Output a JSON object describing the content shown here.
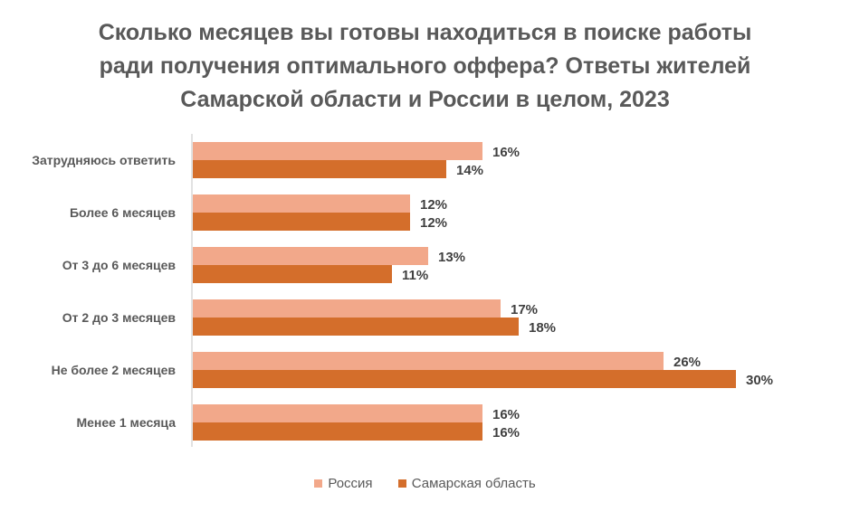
{
  "chart_data": {
    "type": "bar",
    "orientation": "horizontal",
    "title_lines": [
      "Сколько месяцев вы готовы находиться в поиске работы",
      "ради получения оптимального оффера? Ответы жителей",
      "Самарской области и России в целом, 2023"
    ],
    "categories": [
      "Затрудняюсь ответить",
      "Более 6 месяцев",
      "От 3 до 6 месяцев",
      "От 2 до 3 месяцев",
      "Не более 2 месяцев",
      "Менее 1 месяца"
    ],
    "series": [
      {
        "name": "Россия",
        "color": "#F2A88A",
        "values": [
          16,
          12,
          13,
          17,
          26,
          16
        ],
        "labels": [
          "16%",
          "12%",
          "13%",
          "17%",
          "26%",
          "16%"
        ]
      },
      {
        "name": "Самарская область",
        "color": "#D46E2B",
        "values": [
          14,
          12,
          11,
          18,
          30,
          16
        ],
        "labels": [
          "14%",
          "12%",
          "11%",
          "18%",
          "30%",
          "16%"
        ]
      }
    ],
    "unit": "%",
    "legend_position": "bottom",
    "grid": false
  }
}
